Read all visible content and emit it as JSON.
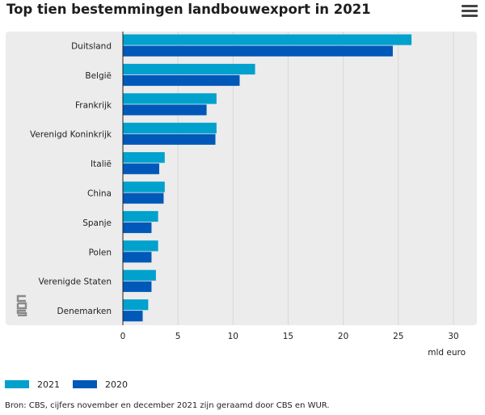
{
  "title": "Top tien bestemmingen landbouwexport in 2021",
  "menu_icon": "hamburger-menu-icon",
  "logo_icon": "cbs-logo-icon",
  "colors": {
    "2021": "#00a1cd",
    "2020": "#0058b8",
    "panel": "#ececec",
    "grid": "#d8d8d8"
  },
  "chart_data": {
    "type": "bar",
    "orientation": "horizontal",
    "categories": [
      "Duitsland",
      "België",
      "Frankrijk",
      "Verenigd Koninkrijk",
      "Italië",
      "China",
      "Spanje",
      "Polen",
      "Verenigde Staten",
      "Denemarken"
    ],
    "series": [
      {
        "name": "2021",
        "values": [
          26.2,
          12.0,
          8.5,
          8.5,
          3.8,
          3.8,
          3.2,
          3.2,
          3.0,
          2.3
        ]
      },
      {
        "name": "2020",
        "values": [
          24.5,
          10.6,
          7.6,
          8.4,
          3.3,
          3.7,
          2.6,
          2.6,
          2.6,
          1.8
        ]
      }
    ],
    "xlim": [
      0,
      30
    ],
    "xticks": [
      0,
      5,
      10,
      15,
      20,
      25,
      30
    ],
    "xlabel": "mld euro",
    "ylabel": "",
    "grid": true,
    "legend": "bottom-left"
  },
  "legend": [
    {
      "label": "2021",
      "color": "#00a1cd"
    },
    {
      "label": "2020",
      "color": "#0058b8"
    }
  ],
  "source": "Bron: CBS, cijfers november en december 2021 zijn geraamd door CBS en WUR."
}
